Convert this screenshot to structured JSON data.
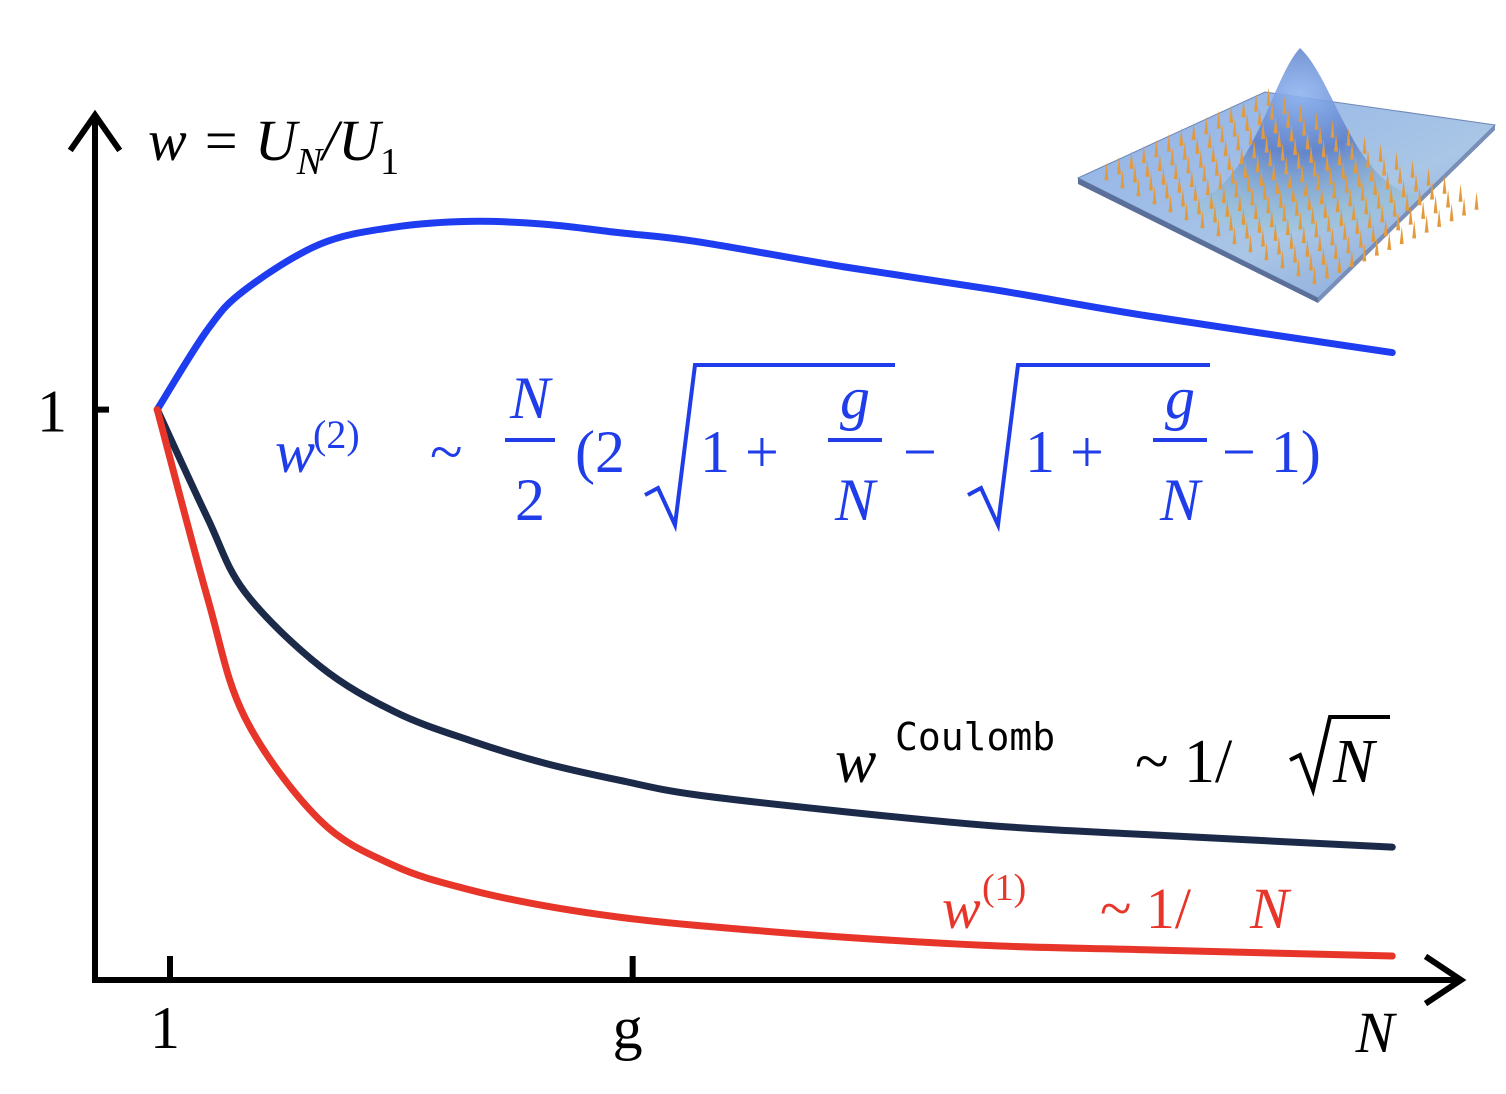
{
  "chart_data": {
    "type": "line",
    "x": [
      0.83,
      1.5,
      2,
      3,
      4,
      5,
      6,
      7,
      8,
      10,
      12,
      14,
      17.3
    ],
    "xlim": [
      0,
      18.27
    ],
    "ylim": [
      0,
      1.52
    ],
    "xticks": [
      {
        "value": 1,
        "label": "1"
      },
      {
        "value": 7.17,
        "label": "g"
      }
    ],
    "yticks": [
      1
    ],
    "xlabel": "N",
    "ylabel": {
      "w": "w = U",
      "sub1": "N",
      "slash": "/U",
      "sub2": "1"
    },
    "series": [
      {
        "color": "#1e3cf0",
        "values": [
          1.0,
          1.14,
          1.21,
          1.29,
          1.32,
          1.33,
          1.325,
          1.31,
          1.295,
          1.25,
          1.21,
          1.165,
          1.1
        ]
      },
      {
        "color": "#1c2a4a",
        "values": [
          1.0,
          0.81,
          0.68,
          0.55,
          0.47,
          0.42,
          0.38,
          0.35,
          0.325,
          0.295,
          0.27,
          0.255,
          0.233
        ]
      },
      {
        "color": "#e8352a",
        "values": [
          1.0,
          0.67,
          0.46,
          0.28,
          0.2,
          0.158,
          0.13,
          0.11,
          0.096,
          0.075,
          0.06,
          0.053,
          0.042
        ]
      }
    ],
    "annotations": [
      {
        "color": "#1f3de8",
        "w": "w",
        "sup": "(2)",
        "sim": "~",
        "num": "N",
        "den": "2",
        "open": "(2",
        "r1": "1 +",
        "r1_num": "g",
        "r1_den": "N",
        "minus": "−",
        "r2": "1 +",
        "r2_num": "g",
        "r2_den": "N",
        "close": "− 1)"
      },
      {
        "color": "#000000",
        "w": "w",
        "sup": "Coulomb",
        "rest": "~ 1/",
        "root": "N"
      },
      {
        "color": "#e8352a",
        "w": "w",
        "sup": "(1)",
        "rest": "~ 1/",
        "n": "N"
      }
    ]
  }
}
